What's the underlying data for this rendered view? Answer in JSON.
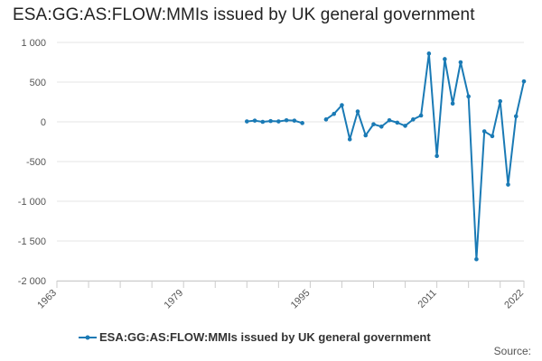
{
  "chart_data": {
    "type": "line",
    "title": "ESA:GG:AS:FLOW:MMIs issued by UK general government",
    "xlabel": "",
    "ylabel": "",
    "xlim": [
      1963,
      2022
    ],
    "ylim": [
      -2000,
      1000
    ],
    "x_ticks": [
      "1963",
      "1979",
      "1995",
      "2011",
      "2022"
    ],
    "y_ticks": [
      "1 000",
      "500",
      "0",
      "-500",
      "-1 000",
      "-1 500",
      "-2 000"
    ],
    "grid": "horizontal",
    "legend_position": "bottom",
    "series": [
      {
        "name": "ESA:GG:AS:FLOW:MMIs issued by UK general government",
        "color": "#1a7ab5",
        "points": [
          [
            1987,
            5
          ],
          [
            1988,
            15
          ],
          [
            1989,
            0
          ],
          [
            1990,
            10
          ],
          [
            1991,
            5
          ],
          [
            1992,
            20
          ],
          [
            1993,
            15
          ],
          [
            1994,
            -15
          ],
          null,
          [
            1997,
            30
          ],
          [
            1998,
            100
          ],
          [
            1999,
            210
          ],
          [
            2000,
            -220
          ],
          [
            2001,
            130
          ],
          [
            2002,
            -170
          ],
          [
            2003,
            -30
          ],
          [
            2004,
            -60
          ],
          [
            2005,
            20
          ],
          [
            2006,
            -10
          ],
          [
            2007,
            -50
          ],
          [
            2008,
            30
          ],
          [
            2009,
            80
          ],
          [
            2010,
            860
          ],
          [
            2011,
            -430
          ],
          [
            2012,
            790
          ],
          [
            2013,
            230
          ],
          [
            2014,
            750
          ],
          [
            2015,
            320
          ],
          [
            2016,
            -1730
          ],
          [
            2017,
            -120
          ],
          [
            2018,
            -180
          ],
          [
            2019,
            260
          ],
          [
            2020,
            -790
          ],
          [
            2021,
            70
          ],
          [
            2022,
            510
          ]
        ]
      }
    ]
  },
  "legend": {
    "label": "ESA:GG:AS:FLOW:MMIs issued by UK general government"
  },
  "footer": {
    "source": "Source:"
  }
}
